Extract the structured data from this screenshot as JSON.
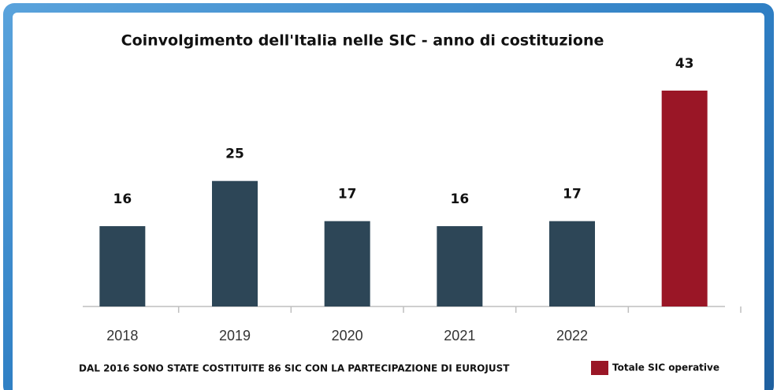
{
  "chart_data": {
    "type": "bar",
    "title": "Coinvolgimento dell'Italia nelle SIC - anno di costituzione",
    "categories": [
      "2018",
      "2019",
      "2020",
      "2021",
      "2022",
      null
    ],
    "values": [
      16,
      25,
      17,
      16,
      17,
      43
    ],
    "colors": [
      "#2d4657",
      "#2d4657",
      "#2d4657",
      "#2d4657",
      "#2d4657",
      "#9a1626"
    ],
    "legend": "Totale SIC operative",
    "footnote": "DAL 2016 SONO STATE COSTITUITE 86 SIC CON LA PARTECIPAZIONE DI EUROJUST"
  }
}
